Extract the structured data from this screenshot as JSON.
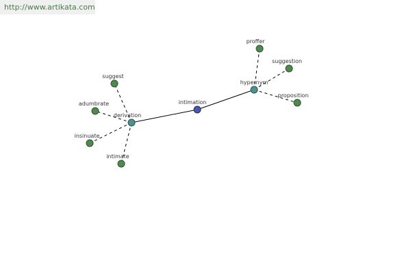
{
  "header": {
    "url": "http://www.artikata.com"
  },
  "nodes": [
    {
      "label": "intimation"
    },
    {
      "label": "derivation"
    },
    {
      "label": "hypernym"
    },
    {
      "label": "suggest"
    },
    {
      "label": "adumbrate"
    },
    {
      "label": "insinuate"
    },
    {
      "label": "intimate"
    },
    {
      "label": "proffer"
    },
    {
      "label": "suggestion"
    },
    {
      "label": "proposition"
    }
  ]
}
